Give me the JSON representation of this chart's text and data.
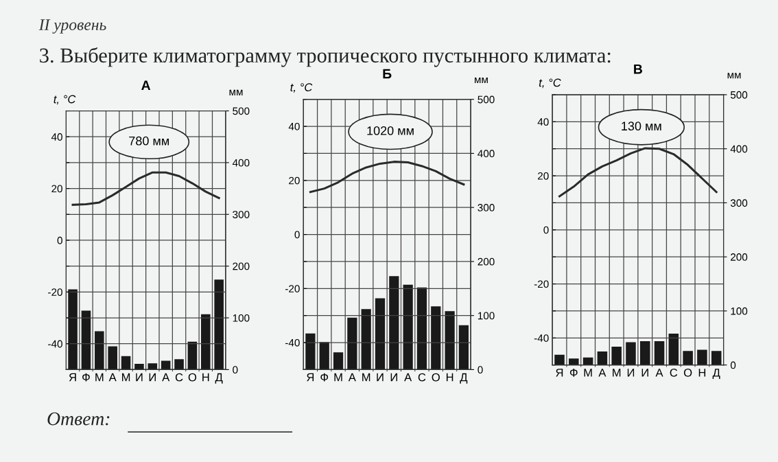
{
  "chart_data": [
    {
      "type": "other",
      "subtitle": "II уровень",
      "title": "3. Выберите климатограмму тропического пустынного климата:",
      "annotations": [
        "Ответ:"
      ]
    },
    {
      "type": "bar",
      "title": "А",
      "ylabel": "t, °C",
      "y2label": "мм",
      "categories": [
        "Я",
        "Ф",
        "М",
        "А",
        "М",
        "И",
        "И",
        "А",
        "С",
        "О",
        "Н",
        "Д"
      ],
      "series": [
        {
          "type": "bar",
          "axis": "y2",
          "color": "#1a1a1a",
          "values": [
            155,
            114,
            74,
            45,
            26,
            11,
            12,
            17,
            20,
            54,
            107,
            174
          ]
        },
        {
          "type": "line",
          "axis": "y",
          "color": "#2a2a2a",
          "values": [
            13.7,
            13.9,
            14.6,
            17.4,
            20.6,
            23.9,
            26.2,
            26.2,
            24.8,
            22,
            18.8,
            16.3
          ]
        }
      ],
      "annotations": [
        "780 мм"
      ],
      "ylim": [
        -50,
        50
      ],
      "y2lim": [
        0,
        500
      ],
      "yticks": [
        {
          "value": -50,
          "label": null
        },
        -40,
        {
          "value": -30,
          "label": null
        },
        -20,
        {
          "value": -10,
          "label": null
        },
        0,
        {
          "value": 10,
          "label": null
        },
        20,
        {
          "value": 30,
          "label": null
        },
        40,
        {
          "value": 50,
          "label": null
        }
      ],
      "y2ticks": [
        0,
        100,
        200,
        300,
        400,
        500
      ],
      "grid": true
    },
    {
      "type": "bar",
      "title": "Б",
      "ylabel": "t, °C",
      "y2label": "мм",
      "categories": [
        "Я",
        "Ф",
        "М",
        "А",
        "М",
        "И",
        "И",
        "А",
        "С",
        "О",
        "Н",
        "Д"
      ],
      "series": [
        {
          "type": "bar",
          "axis": "y2",
          "color": "#1a1a1a",
          "values": [
            67,
            51,
            32,
            96,
            112,
            132,
            173,
            157,
            152,
            117,
            108,
            82
          ]
        },
        {
          "type": "line",
          "axis": "y",
          "color": "#2a2a2a",
          "values": [
            15.7,
            17,
            19.3,
            22.5,
            24.8,
            26.2,
            26.9,
            26.7,
            25.3,
            23.4,
            20.6,
            18.5
          ]
        }
      ],
      "annotations": [
        "1020 мм"
      ],
      "ylim": [
        -50,
        50
      ],
      "y2lim": [
        0,
        500
      ],
      "yticks": [
        {
          "value": -50,
          "label": null
        },
        -40,
        {
          "value": -30,
          "label": null
        },
        -20,
        {
          "value": -10,
          "label": null
        },
        0,
        {
          "value": 10,
          "label": null
        },
        20,
        {
          "value": 30,
          "label": null
        },
        40,
        {
          "value": 50,
          "label": null
        }
      ],
      "y2ticks": [
        0,
        100,
        200,
        300,
        400,
        500
      ],
      "grid": true
    },
    {
      "type": "bar",
      "title": "В",
      "ylabel": "t, °C",
      "y2label": "мм",
      "categories": [
        "Я",
        "Ф",
        "М",
        "А",
        "М",
        "И",
        "И",
        "А",
        "С",
        "О",
        "Н",
        "Д"
      ],
      "series": [
        {
          "type": "bar",
          "axis": "y2",
          "color": "#1a1a1a",
          "values": [
            19,
            12,
            14,
            25,
            34,
            42,
            44,
            44,
            58,
            26,
            28,
            26
          ]
        },
        {
          "type": "line",
          "axis": "y",
          "color": "#2a2a2a",
          "values": [
            12.4,
            16,
            20.5,
            23.5,
            25.7,
            28.3,
            30.2,
            30,
            28,
            24,
            19,
            14
          ]
        }
      ],
      "annotations": [
        "130 мм"
      ],
      "ylim": [
        -50,
        50
      ],
      "y2lim": [
        0,
        500
      ],
      "yticks": [
        {
          "value": -50,
          "label": null
        },
        -40,
        {
          "value": -30,
          "label": null
        },
        -20,
        {
          "value": -10,
          "label": null
        },
        0,
        {
          "value": 10,
          "label": null
        },
        20,
        {
          "value": 30,
          "label": null
        },
        40,
        {
          "value": 50,
          "label": null
        }
      ],
      "y2ticks": [
        0,
        100,
        200,
        300,
        400,
        500
      ],
      "grid": true
    }
  ]
}
